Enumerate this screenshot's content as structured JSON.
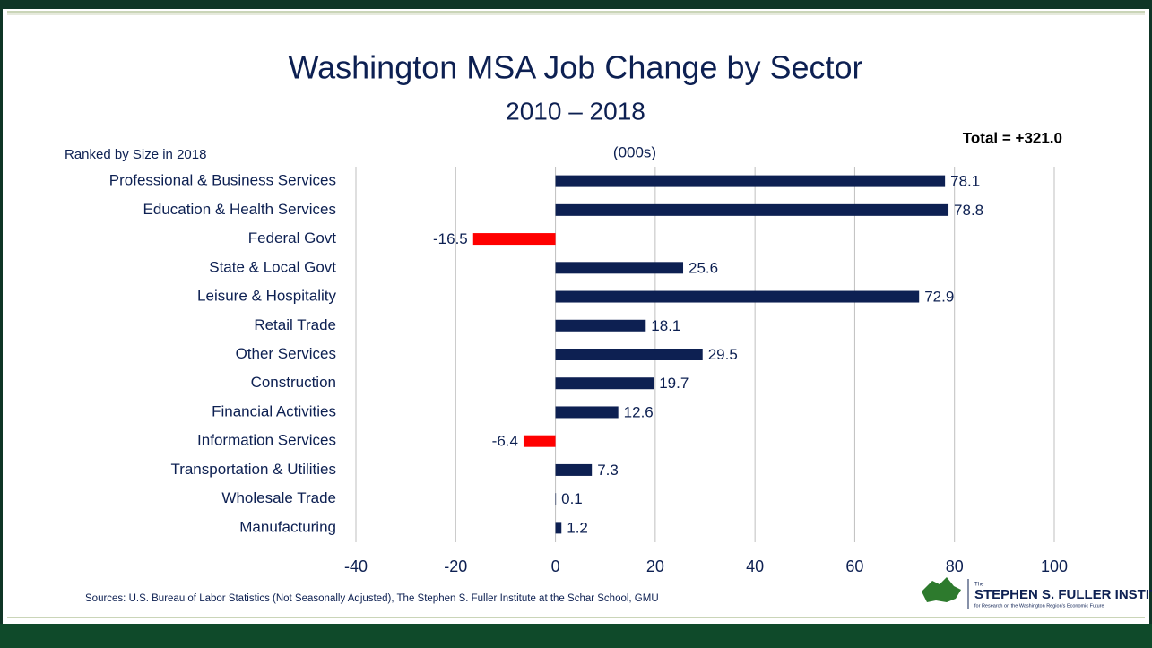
{
  "chart_data": {
    "type": "hbar",
    "title": "Washington MSA Job Change by Sector",
    "subtitle": "2010 – 2018",
    "ranking_note": "Ranked by Size in 2018",
    "unit_label": "(000s)",
    "total_label": "Total = +321.0",
    "source": "Sources: U.S. Bureau of Labor Statistics (Not Seasonally Adjusted), The Stephen S. Fuller Institute at the Schar School, GMU",
    "categories": [
      "Professional & Business Services",
      "Education & Health Services",
      "Federal Govt",
      "State & Local Govt",
      "Leisure & Hospitality",
      "Retail Trade",
      "Other Services",
      "Construction",
      "Financial Activities",
      "Information Services",
      "Transportation & Utilities",
      "Wholesale Trade",
      "Manufacturing"
    ],
    "values": [
      78.1,
      78.8,
      -16.5,
      25.6,
      72.9,
      18.1,
      29.5,
      19.7,
      12.6,
      -6.4,
      7.3,
      0.1,
      1.2
    ],
    "color": "#0d2052",
    "negative_color": "#ff0000",
    "xlim": [
      -40,
      100
    ],
    "xticks": [
      -40,
      -20,
      0,
      20,
      40,
      60,
      80,
      100
    ],
    "grid": true
  },
  "logo": {
    "prefix": "The",
    "name": "STEPHEN S. FULLER INSTITUTE",
    "tagline": "for Research on the Washington Region's Economic Future"
  }
}
